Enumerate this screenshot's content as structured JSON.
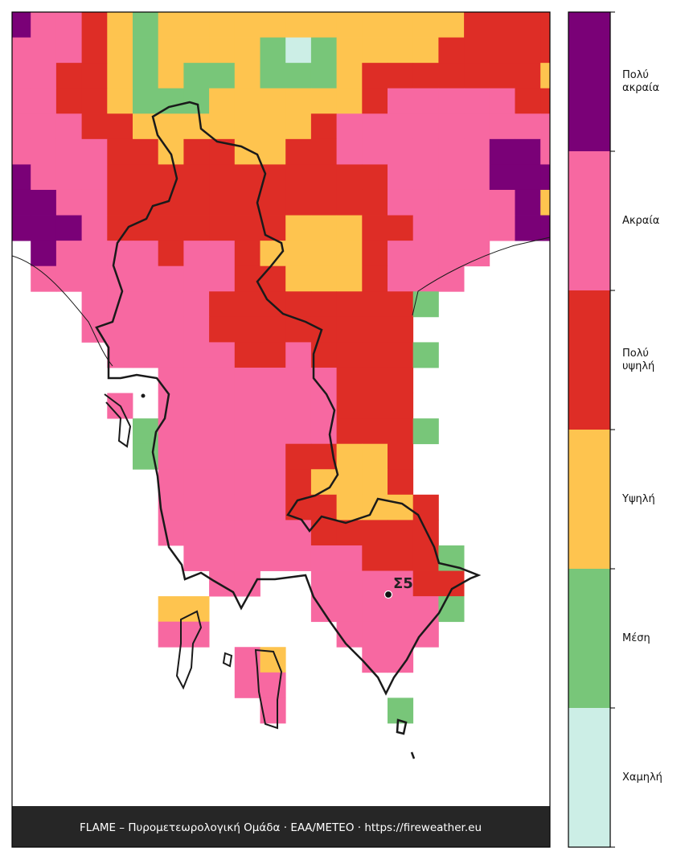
{
  "legend": [
    {
      "label": "Χαμηλή",
      "color": "#cceee6"
    },
    {
      "label": "Μέση",
      "color": "#78c679"
    },
    {
      "label": "Υψηλή",
      "color": "#fec44f"
    },
    {
      "label": "Πολύ\nυψηλή",
      "color": "#de2d26"
    },
    {
      "label": "Ακραία",
      "color": "#f768a1"
    },
    {
      "label": "Πολύ\nακραία",
      "color": "#7a0177"
    }
  ],
  "station": {
    "label": "Σ5"
  },
  "footer": "FLAME – Πυρομετεωρολογική Ομάδα · ΕΑΑ/METEO · https://fireweather.eu",
  "grid": [
    [
      5,
      4,
      4,
      3,
      2,
      1,
      2,
      2,
      2,
      2,
      2,
      2,
      2,
      2,
      2,
      2,
      2,
      2,
      3,
      3,
      3,
      3
    ],
    [
      4,
      4,
      4,
      3,
      2,
      1,
      2,
      2,
      2,
      2,
      1,
      0,
      1,
      2,
      2,
      2,
      2,
      3,
      3,
      3,
      3,
      3
    ],
    [
      4,
      4,
      3,
      3,
      2,
      1,
      2,
      1,
      1,
      2,
      1,
      1,
      1,
      2,
      3,
      3,
      3,
      3,
      3,
      3,
      3,
      2
    ],
    [
      4,
      4,
      3,
      3,
      2,
      1,
      1,
      1,
      2,
      2,
      2,
      2,
      2,
      2,
      3,
      4,
      4,
      4,
      4,
      4,
      3,
      3
    ],
    [
      4,
      4,
      4,
      3,
      3,
      2,
      2,
      2,
      2,
      2,
      2,
      2,
      3,
      4,
      4,
      4,
      4,
      4,
      4,
      4,
      4,
      4
    ],
    [
      4,
      4,
      4,
      4,
      3,
      3,
      2,
      3,
      3,
      2,
      2,
      3,
      3,
      4,
      4,
      4,
      4,
      4,
      4,
      5,
      5,
      4
    ],
    [
      5,
      4,
      4,
      4,
      3,
      3,
      3,
      3,
      3,
      3,
      3,
      3,
      3,
      3,
      3,
      4,
      4,
      4,
      4,
      5,
      5,
      5
    ],
    [
      5,
      5,
      4,
      4,
      3,
      3,
      3,
      3,
      3,
      3,
      3,
      3,
      3,
      3,
      3,
      4,
      4,
      4,
      4,
      4,
      5,
      2
    ],
    [
      5,
      5,
      5,
      4,
      3,
      3,
      3,
      3,
      3,
      3,
      3,
      2,
      2,
      2,
      3,
      3,
      4,
      4,
      4,
      4,
      5,
      5
    ],
    [
      null,
      5,
      4,
      4,
      4,
      4,
      3,
      4,
      4,
      3,
      2,
      2,
      2,
      2,
      3,
      4,
      4,
      4,
      4,
      null,
      null,
      null
    ],
    [
      null,
      4,
      4,
      4,
      4,
      4,
      4,
      4,
      4,
      3,
      3,
      2,
      2,
      2,
      3,
      4,
      4,
      4,
      null,
      null,
      null,
      null
    ],
    [
      null,
      null,
      null,
      4,
      4,
      4,
      4,
      4,
      3,
      3,
      3,
      3,
      3,
      3,
      3,
      3,
      1,
      null,
      null,
      null,
      null,
      null
    ],
    [
      null,
      null,
      null,
      4,
      4,
      4,
      4,
      4,
      3,
      3,
      3,
      3,
      3,
      3,
      3,
      3,
      null,
      null,
      null,
      null,
      null,
      null
    ],
    [
      null,
      null,
      null,
      null,
      4,
      4,
      4,
      4,
      4,
      3,
      3,
      4,
      3,
      3,
      3,
      3,
      1,
      null,
      null,
      null,
      null,
      null
    ],
    [
      null,
      null,
      null,
      null,
      null,
      null,
      4,
      4,
      4,
      4,
      4,
      4,
      4,
      3,
      3,
      3,
      null,
      null,
      null,
      null,
      null,
      null
    ],
    [
      null,
      null,
      null,
      null,
      4,
      null,
      4,
      4,
      4,
      4,
      4,
      4,
      4,
      3,
      3,
      3,
      null,
      null,
      null,
      null,
      null,
      null
    ],
    [
      null,
      null,
      null,
      null,
      null,
      1,
      4,
      4,
      4,
      4,
      4,
      4,
      4,
      3,
      3,
      3,
      1,
      null,
      null,
      null,
      null,
      null
    ],
    [
      null,
      null,
      null,
      null,
      null,
      1,
      4,
      4,
      4,
      4,
      4,
      3,
      3,
      2,
      2,
      3,
      null,
      null,
      null,
      null,
      null,
      null
    ],
    [
      null,
      null,
      null,
      null,
      null,
      null,
      4,
      4,
      4,
      4,
      4,
      3,
      2,
      2,
      2,
      3,
      null,
      null,
      null,
      null,
      null,
      null
    ],
    [
      null,
      null,
      null,
      null,
      null,
      null,
      4,
      4,
      4,
      4,
      4,
      3,
      3,
      2,
      2,
      2,
      3,
      null,
      null,
      null,
      null,
      null
    ],
    [
      null,
      null,
      null,
      null,
      null,
      null,
      4,
      4,
      4,
      4,
      4,
      4,
      3,
      3,
      3,
      3,
      3,
      null,
      null,
      null,
      null,
      null
    ],
    [
      null,
      null,
      null,
      null,
      null,
      null,
      null,
      4,
      4,
      4,
      4,
      4,
      4,
      4,
      3,
      3,
      3,
      1,
      null,
      null,
      null,
      null
    ],
    [
      null,
      null,
      null,
      null,
      null,
      null,
      null,
      null,
      4,
      4,
      null,
      null,
      4,
      4,
      4,
      4,
      3,
      3,
      null,
      null,
      null,
      null
    ],
    [
      null,
      null,
      null,
      null,
      null,
      null,
      2,
      2,
      null,
      null,
      null,
      null,
      4,
      4,
      4,
      4,
      4,
      1,
      null,
      null,
      null,
      null
    ],
    [
      null,
      null,
      null,
      null,
      null,
      null,
      4,
      4,
      null,
      null,
      null,
      null,
      null,
      4,
      4,
      4,
      4,
      null,
      null,
      null,
      null,
      null
    ],
    [
      null,
      null,
      null,
      null,
      null,
      null,
      null,
      null,
      null,
      4,
      2,
      null,
      null,
      null,
      4,
      4,
      null,
      null,
      null,
      null,
      null,
      null
    ],
    [
      null,
      null,
      null,
      null,
      null,
      null,
      null,
      null,
      null,
      4,
      4,
      null,
      null,
      null,
      null,
      null,
      null,
      null,
      null,
      null,
      null,
      null
    ],
    [
      null,
      null,
      null,
      null,
      null,
      null,
      null,
      null,
      null,
      null,
      4,
      null,
      null,
      null,
      null,
      1,
      null,
      null,
      null,
      null,
      null,
      null
    ]
  ]
}
